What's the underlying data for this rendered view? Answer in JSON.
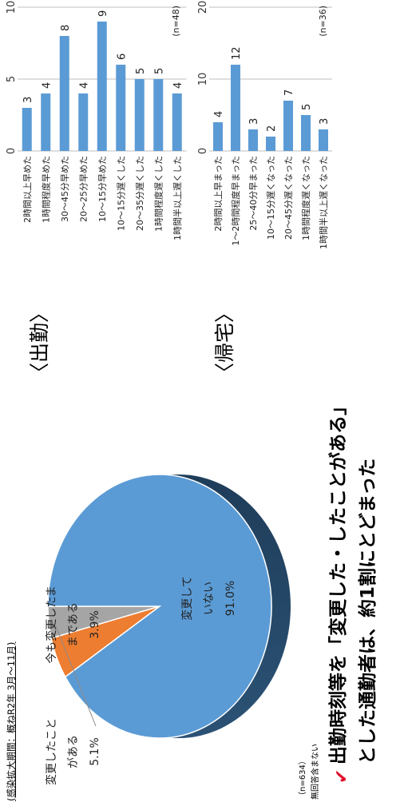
{
  "header": {
    "period_note": "(感染拡大期間：概ねR2年 3月～11月)"
  },
  "pie": {
    "n_note": "（n=634）",
    "no_answer_note": "無回答含まない",
    "labels": {
      "changed": [
        "変更したこと",
        "がある",
        "5.1%"
      ],
      "still": [
        "今も変更したま",
        "まである",
        "3.9%"
      ],
      "unchanged": [
        "変更して",
        "いない",
        "91.0%"
      ]
    }
  },
  "sections": {
    "commute": "〈出勤〉",
    "return": "〈帰宅〉"
  },
  "conclusion": {
    "line1": "出勤時刻等を「変更した・したことがある」",
    "line2": "とした通勤者は、約1割にとどまった",
    "check_icon": "check-icon"
  },
  "colors": {
    "blue": "#5b9bd5",
    "blue_dark": "#1f3d5a",
    "orange": "#ed7d31",
    "gray": "#a5a5a5",
    "bar": "#5b9bd5",
    "check": "#e0102a"
  },
  "chart_data": [
    {
      "type": "pie",
      "labels": [
        "変更していない",
        "変更したことがある",
        "今も変更したままである"
      ],
      "values": [
        91.0,
        5.1,
        3.9
      ],
      "data_labels": [
        "91.0%",
        "5.1%",
        "3.9%"
      ],
      "colors": [
        "#5b9bd5",
        "#ed7d31",
        "#a5a5a5"
      ],
      "n": "(n=634)"
    },
    {
      "type": "bar",
      "orientation": "horizontal",
      "categories": [
        "2時間以上早めた",
        "1時間程度早めた",
        "30～45分早めた",
        "20～25分早めた",
        "10～15分早めた",
        "10～15分遅くした",
        "20～35分遅くした",
        "1時間程度遅くした",
        "1時間半以上遅くした"
      ],
      "values": [
        3,
        4,
        8,
        4,
        9,
        6,
        5,
        5,
        4
      ],
      "xlim": [
        0,
        10
      ],
      "ticks": [
        0,
        5,
        10
      ],
      "n_note": "(n=48)",
      "color": "#5b9bd5",
      "grid": true
    },
    {
      "type": "bar",
      "orientation": "horizontal",
      "categories": [
        "2時間以上早まった",
        "1～2時間程度早まった",
        "25～40分早まった",
        "10～15分遅くなった",
        "20～45分遅くなった",
        "1時間程度遅くなった",
        "1時間半以上遅くなった"
      ],
      "values": [
        4,
        12,
        3,
        2,
        7,
        5,
        3
      ],
      "xlim": [
        0,
        20
      ],
      "ticks": [
        0,
        10,
        20
      ],
      "n_note": "(n=36)",
      "color": "#5b9bd5",
      "grid": true
    }
  ]
}
